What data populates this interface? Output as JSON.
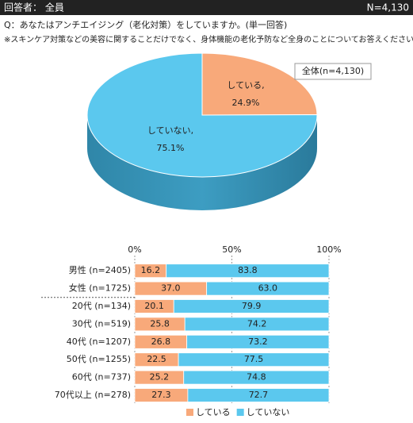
{
  "header": {
    "respondents": "回答者： 全員",
    "n": "N=4,130",
    "question": "Q：あなたはアンチエイジング（老化対策）をしていますか。(単一回答)",
    "note": "※スキンケア対策などの美容に関することだけでなく、身体機能の老化予防など全身のことについてお答えください。"
  },
  "chart_data": [
    {
      "type": "pie",
      "title": "全体(n=4,130)",
      "categories": [
        "している,",
        "していない,"
      ],
      "values": [
        24.9,
        75.1
      ],
      "value_labels": [
        "24.9%",
        "75.1%"
      ],
      "colors": [
        "#f8a97a",
        "#5bc8ee"
      ]
    },
    {
      "type": "bar",
      "orientation": "horizontal",
      "stacked": true,
      "categories": [
        "男性 (n=2405)",
        "女性 (n=1725)",
        "20代 (n=134)",
        "30代 (n=519)",
        "40代 (n=1207)",
        "50代 (n=1255)",
        "60代 (n=737)",
        "70代以上 (n=278)"
      ],
      "series": [
        {
          "name": "している",
          "color": "#f8a97a",
          "values": [
            16.2,
            37,
            20.1,
            25.8,
            26.8,
            22.5,
            25.2,
            27.3
          ],
          "value_labels": [
            "16.2",
            "37.0",
            "20.1",
            "25.8",
            "26.8",
            "22.5",
            "25.2",
            "27.3"
          ]
        },
        {
          "name": "していない",
          "color": "#5bc8ee",
          "values": [
            83.8,
            63,
            79.9,
            74.2,
            73.2,
            77.5,
            74.8,
            72.7
          ],
          "value_labels": [
            "83.8",
            "63.0",
            "79.9",
            "74.2",
            "73.2",
            "77.5",
            "74.8",
            "72.7"
          ]
        }
      ],
      "xlim": [
        0,
        100
      ],
      "xticks": [
        {
          "value": 0,
          "label": "0%"
        },
        {
          "value": 50,
          "label": "50%"
        },
        {
          "value": 100,
          "label": "100%"
        }
      ],
      "legend": "bottom"
    }
  ]
}
